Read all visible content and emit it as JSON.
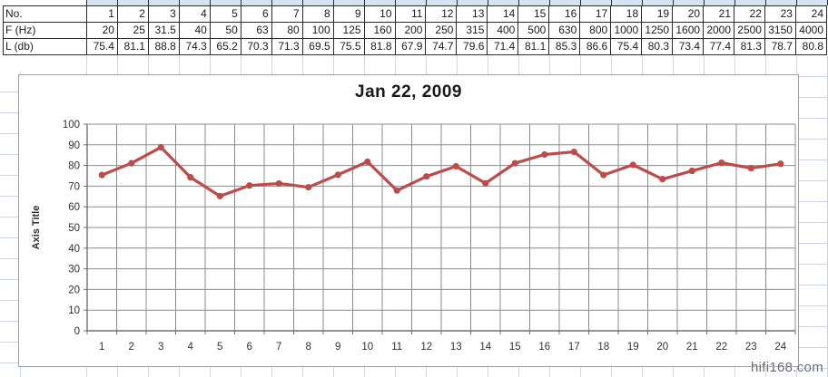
{
  "table": {
    "rows": [
      {
        "label": "No.",
        "values": [
          "1",
          "2",
          "3",
          "4",
          "5",
          "6",
          "7",
          "8",
          "9",
          "10",
          "11",
          "12",
          "13",
          "14",
          "15",
          "16",
          "17",
          "18",
          "19",
          "20",
          "21",
          "22",
          "23",
          "24"
        ]
      },
      {
        "label": "F (Hz)",
        "values": [
          "20",
          "25",
          "31.5",
          "40",
          "50",
          "63",
          "80",
          "100",
          "125",
          "160",
          "200",
          "250",
          "315",
          "400",
          "500",
          "630",
          "800",
          "1000",
          "1250",
          "1600",
          "2000",
          "2500",
          "3150",
          "4000"
        ]
      },
      {
        "label": "L (db)",
        "values": [
          "75.4",
          "81.1",
          "88.8",
          "74.3",
          "65.2",
          "70.3",
          "71.3",
          "69.5",
          "75.5",
          "81.8",
          "67.9",
          "74.7",
          "79.6",
          "71.4",
          "81.1",
          "85.3",
          "86.6",
          "75.4",
          "80.3",
          "73.4",
          "77.4",
          "81.3",
          "78.7",
          "80.8"
        ]
      }
    ]
  },
  "chart_data": {
    "type": "line",
    "title": "Jan 22, 2009",
    "xlabel": "",
    "ylabel": "Axis Title",
    "categories": [
      1,
      2,
      3,
      4,
      5,
      6,
      7,
      8,
      9,
      10,
      11,
      12,
      13,
      14,
      15,
      16,
      17,
      18,
      19,
      20,
      21,
      22,
      23,
      24
    ],
    "values": [
      75.4,
      81.1,
      88.8,
      74.3,
      65.2,
      70.3,
      71.3,
      69.5,
      75.5,
      81.8,
      67.9,
      74.7,
      79.6,
      71.4,
      81.1,
      85.3,
      86.6,
      75.4,
      80.3,
      73.4,
      77.4,
      81.3,
      78.7,
      80.8
    ],
    "ylim": [
      0,
      100
    ],
    "y_tick_step": 10,
    "grid": true,
    "legend": "none",
    "series_color": "#be4b48",
    "grid_color": "#8c8c8c",
    "axis_color": "#707070",
    "tick_label_color": "#333333"
  },
  "watermark": "hifi168.com"
}
